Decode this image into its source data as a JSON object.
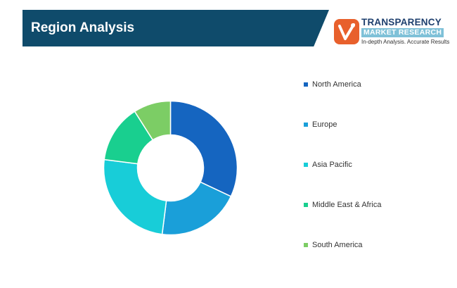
{
  "header": {
    "title": "Region Analysis"
  },
  "logo": {
    "line1": "TRANSPARENCY",
    "line2": "MARKET RESEARCH",
    "line3": "In-depth Analysis. Accurate Results",
    "colors": {
      "mark": "#e8602c",
      "text": "#1e3f6e",
      "band": "#7fc1d8"
    }
  },
  "chart_data": {
    "type": "pie",
    "donut": true,
    "title": "",
    "legend_position": "right",
    "categories": [
      "North America",
      "Europe",
      "Asia Pacific",
      "Middle East & Africa",
      "South America"
    ],
    "values": [
      32,
      20,
      25,
      14,
      9
    ],
    "colors": [
      "#1565c0",
      "#1a9fd9",
      "#18cdd8",
      "#19cf8f",
      "#7ccd65"
    ]
  }
}
